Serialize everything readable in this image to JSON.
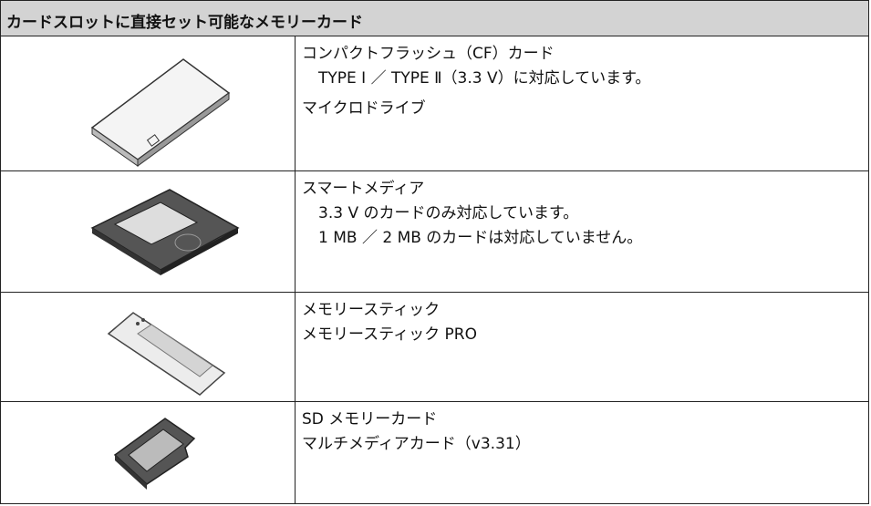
{
  "table": {
    "title": "カードスロットに直接セット可能なメモリーカード",
    "rows": [
      {
        "items": [
          {
            "name": "コンパクトフラッシュ（CF）カード",
            "notes": [
              "TYPE Ⅰ ／ TYPE Ⅱ（3.3 V）に対応しています。"
            ]
          },
          {
            "name": "マイクロドライブ"
          }
        ]
      },
      {
        "items": [
          {
            "name": "スマートメディア",
            "notes": [
              "3.3 V のカードのみ対応しています。",
              "1 MB ／ 2 MB のカードは対応していません。"
            ]
          }
        ]
      },
      {
        "items": [
          {
            "name": "メモリースティック"
          },
          {
            "name": "メモリースティック PRO"
          }
        ]
      },
      {
        "items": [
          {
            "name": "SD メモリーカード"
          },
          {
            "name": "マルチメディアカード（v3.31）"
          }
        ]
      }
    ]
  }
}
